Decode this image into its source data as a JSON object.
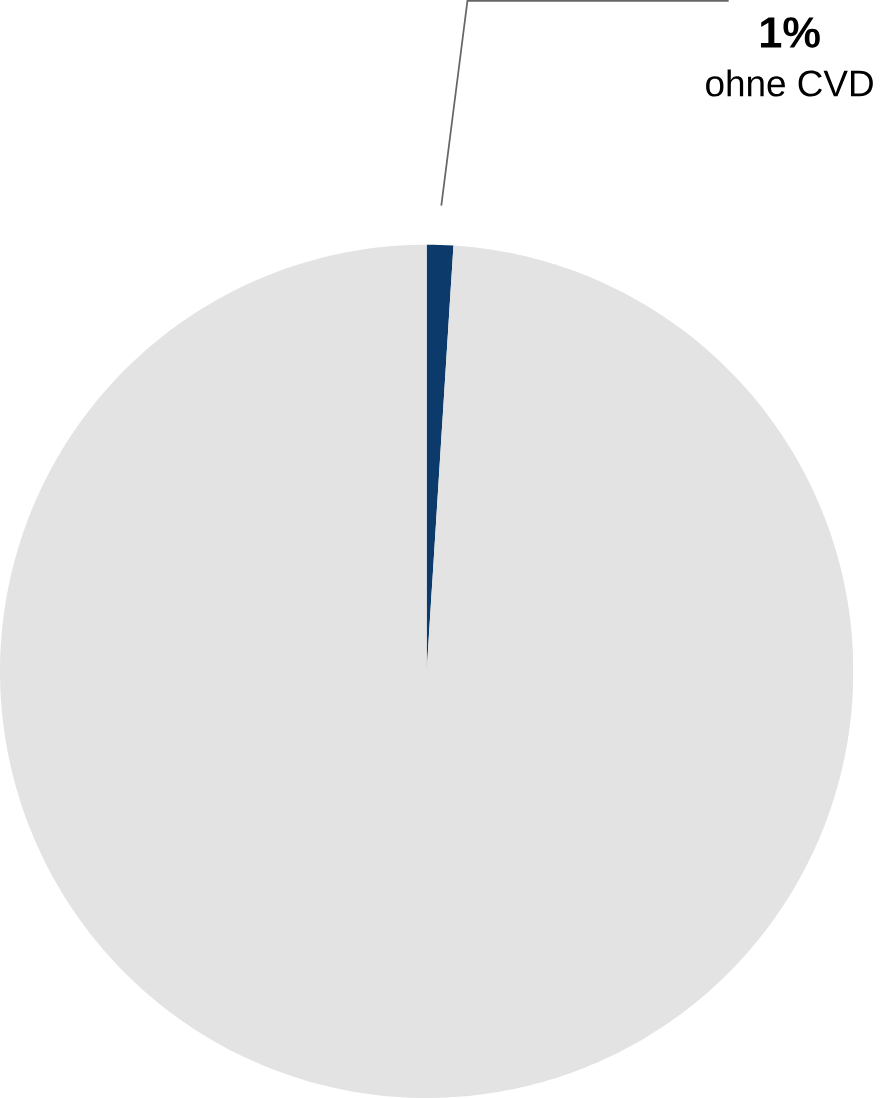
{
  "chart_data": {
    "type": "pie",
    "categories": [
      "ohne CVD",
      null
    ],
    "values": [
      1,
      99
    ],
    "colors": [
      "#0b3a6b",
      "#e3e3e3"
    ],
    "value_labels": [
      "1%",
      null
    ]
  }
}
